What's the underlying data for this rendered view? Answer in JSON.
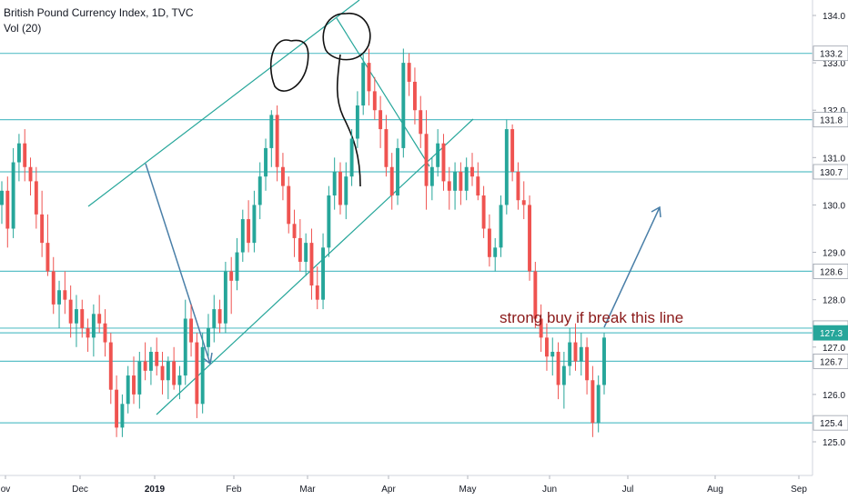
{
  "header": {
    "title": "British Pound Currency Index, 1D, TVC",
    "volume": "Vol (20)"
  },
  "chart_data": {
    "type": "candlestick",
    "colors": {
      "up": "#26a69a",
      "down": "#ef5350",
      "level_line": "#5bc0c8",
      "trend_line": "#26a69a",
      "arrow": "#4a7fa8",
      "note": "#8b1a1a",
      "last_price_badge": "#26a69a"
    },
    "y_ticks": [
      "134.0",
      "133.0",
      "132.0",
      "131.0",
      "130.0",
      "129.0",
      "128.0",
      "127.0",
      "126.0",
      "125.0"
    ],
    "x_ticks": [
      {
        "label": "ov"
      },
      {
        "label": "Dec"
      },
      {
        "label": "2019",
        "bold": true
      },
      {
        "label": "Feb"
      },
      {
        "label": "Mar"
      },
      {
        "label": "Apr"
      },
      {
        "label": "May"
      },
      {
        "label": "Jun"
      },
      {
        "label": "Jul"
      },
      {
        "label": "Aug"
      },
      {
        "label": "Sep"
      }
    ],
    "horizontal_levels": [
      "133.2",
      "131.8",
      "130.7",
      "128.6",
      "127.4",
      "127.3",
      "126.7",
      "125.4"
    ],
    "last_price": "127.3",
    "annotation": "strong buy if break this line",
    "candles": [
      [
        130.0,
        130.5,
        129.6,
        130.3
      ],
      [
        130.3,
        130.6,
        129.1,
        129.5
      ],
      [
        129.5,
        131.2,
        129.3,
        130.9
      ],
      [
        130.9,
        131.5,
        130.5,
        131.3
      ],
      [
        131.3,
        131.6,
        130.5,
        130.8
      ],
      [
        130.8,
        131.0,
        130.2,
        130.5
      ],
      [
        130.5,
        130.8,
        129.5,
        129.8
      ],
      [
        129.8,
        130.3,
        128.9,
        129.2
      ],
      [
        129.2,
        129.8,
        128.5,
        128.6
      ],
      [
        128.6,
        128.9,
        127.7,
        127.9
      ],
      [
        127.9,
        128.4,
        127.4,
        128.2
      ],
      [
        128.2,
        128.6,
        127.7,
        128.0
      ],
      [
        128.0,
        128.3,
        127.2,
        127.5
      ],
      [
        127.5,
        128.1,
        127.0,
        127.8
      ],
      [
        127.8,
        128.0,
        127.2,
        127.4
      ],
      [
        127.4,
        127.6,
        126.9,
        127.2
      ],
      [
        127.2,
        127.9,
        126.8,
        127.7
      ],
      [
        127.7,
        128.1,
        127.3,
        127.5
      ],
      [
        127.5,
        127.8,
        126.8,
        127.1
      ],
      [
        127.1,
        127.3,
        125.8,
        126.1
      ],
      [
        126.1,
        126.4,
        125.1,
        125.3
      ],
      [
        125.3,
        126.0,
        125.1,
        125.8
      ],
      [
        125.8,
        126.6,
        125.6,
        126.4
      ],
      [
        126.4,
        126.8,
        125.8,
        126.0
      ],
      [
        126.0,
        126.9,
        125.7,
        126.7
      ],
      [
        126.7,
        127.1,
        126.3,
        126.5
      ],
      [
        126.5,
        127.0,
        126.2,
        126.9
      ],
      [
        126.9,
        127.2,
        126.4,
        126.6
      ],
      [
        126.6,
        126.9,
        126.0,
        126.3
      ],
      [
        126.3,
        126.8,
        125.9,
        126.7
      ],
      [
        126.7,
        127.0,
        126.1,
        126.2
      ],
      [
        126.2,
        126.6,
        125.9,
        126.4
      ],
      [
        126.4,
        128.0,
        126.2,
        127.6
      ],
      [
        127.6,
        127.9,
        126.8,
        127.1
      ],
      [
        127.1,
        127.3,
        125.5,
        125.8
      ],
      [
        125.8,
        127.3,
        125.6,
        127.0
      ],
      [
        127.0,
        127.7,
        126.8,
        127.4
      ],
      [
        127.4,
        128.1,
        127.1,
        127.8
      ],
      [
        127.8,
        128.0,
        127.3,
        127.5
      ],
      [
        127.5,
        128.8,
        127.3,
        128.6
      ],
      [
        128.6,
        128.9,
        127.7,
        128.4
      ],
      [
        128.4,
        129.3,
        128.2,
        129.0
      ],
      [
        129.0,
        129.9,
        128.8,
        129.7
      ],
      [
        129.7,
        130.1,
        129.0,
        129.2
      ],
      [
        129.2,
        130.3,
        129.0,
        130.0
      ],
      [
        130.0,
        130.9,
        129.7,
        130.6
      ],
      [
        130.6,
        131.4,
        130.3,
        131.2
      ],
      [
        131.2,
        132.0,
        130.8,
        131.9
      ],
      [
        131.9,
        132.1,
        130.5,
        130.8
      ],
      [
        130.8,
        131.1,
        130.1,
        130.4
      ],
      [
        130.4,
        130.6,
        129.4,
        129.6
      ],
      [
        129.6,
        129.9,
        128.9,
        129.3
      ],
      [
        129.3,
        129.7,
        128.6,
        128.8
      ],
      [
        128.8,
        129.4,
        128.5,
        129.2
      ],
      [
        129.2,
        129.5,
        128.0,
        128.3
      ],
      [
        128.3,
        128.7,
        127.8,
        128.0
      ],
      [
        128.0,
        129.4,
        127.8,
        129.1
      ],
      [
        129.1,
        130.4,
        128.9,
        130.2
      ],
      [
        130.2,
        131.0,
        129.9,
        130.7
      ],
      [
        130.7,
        130.9,
        129.8,
        130.0
      ],
      [
        130.0,
        130.9,
        129.7,
        130.6
      ],
      [
        130.6,
        131.6,
        130.4,
        131.4
      ],
      [
        131.4,
        132.4,
        131.2,
        132.1
      ],
      [
        132.1,
        133.2,
        131.9,
        133.0
      ],
      [
        133.0,
        133.3,
        132.1,
        132.4
      ],
      [
        132.4,
        132.7,
        131.8,
        132.0
      ],
      [
        132.0,
        132.3,
        131.2,
        131.6
      ],
      [
        131.6,
        131.9,
        130.6,
        130.8
      ],
      [
        130.8,
        131.1,
        129.9,
        130.2
      ],
      [
        130.2,
        131.4,
        130.0,
        131.2
      ],
      [
        131.2,
        133.3,
        131.0,
        133.0
      ],
      [
        133.0,
        133.2,
        132.3,
        132.6
      ],
      [
        132.6,
        132.9,
        131.7,
        132.0
      ],
      [
        132.0,
        132.3,
        131.2,
        131.5
      ],
      [
        131.5,
        132.0,
        129.9,
        130.4
      ],
      [
        130.4,
        131.0,
        130.1,
        130.8
      ],
      [
        130.8,
        131.6,
        130.6,
        131.3
      ],
      [
        131.3,
        131.5,
        130.3,
        130.5
      ],
      [
        130.5,
        130.8,
        129.9,
        130.3
      ],
      [
        130.3,
        130.9,
        129.9,
        130.7
      ],
      [
        130.7,
        130.9,
        130.0,
        130.3
      ],
      [
        130.3,
        131.0,
        130.1,
        130.8
      ],
      [
        130.8,
        131.1,
        130.4,
        130.6
      ],
      [
        130.6,
        130.9,
        130.1,
        130.2
      ],
      [
        130.2,
        130.4,
        129.3,
        129.5
      ],
      [
        129.5,
        129.8,
        128.7,
        128.9
      ],
      [
        128.9,
        129.3,
        128.6,
        129.1
      ],
      [
        129.1,
        130.2,
        128.9,
        130.0
      ],
      [
        130.0,
        131.8,
        129.8,
        131.6
      ],
      [
        131.6,
        131.7,
        130.5,
        130.7
      ],
      [
        130.7,
        130.9,
        129.9,
        130.1
      ],
      [
        130.1,
        130.5,
        129.7,
        130.0
      ],
      [
        130.0,
        130.2,
        128.4,
        128.6
      ],
      [
        128.6,
        128.8,
        127.4,
        127.6
      ],
      [
        127.6,
        127.9,
        126.9,
        127.2
      ],
      [
        127.2,
        127.5,
        126.5,
        126.8
      ],
      [
        126.8,
        127.2,
        126.4,
        126.9
      ],
      [
        126.9,
        127.1,
        125.9,
        126.2
      ],
      [
        126.2,
        126.9,
        125.7,
        126.6
      ],
      [
        126.6,
        127.4,
        126.4,
        127.1
      ],
      [
        127.1,
        127.5,
        126.5,
        126.7
      ],
      [
        126.7,
        127.3,
        126.4,
        127.0
      ],
      [
        127.0,
        127.2,
        126.0,
        126.3
      ],
      [
        126.3,
        126.6,
        125.1,
        125.4
      ],
      [
        125.4,
        126.4,
        125.2,
        126.2
      ],
      [
        126.2,
        127.3,
        126.0,
        127.2
      ]
    ]
  }
}
